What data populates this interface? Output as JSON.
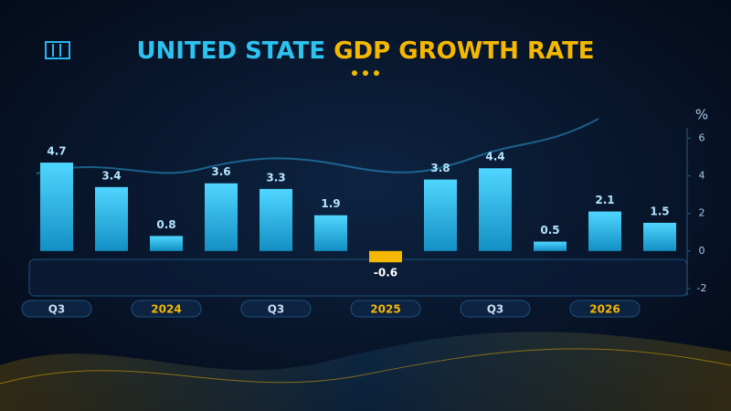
{
  "chart_data": {
    "type": "bar",
    "title": [
      "UNITED STATE",
      "GDP GROWTH RATE"
    ],
    "y_label": "%",
    "categories": [
      "Q3",
      null,
      "2024",
      null,
      "Q3",
      null,
      "2025",
      null,
      "Q3",
      null,
      "2026",
      null
    ],
    "values": [
      4.7,
      3.4,
      0.8,
      3.6,
      3.3,
      1.9,
      -0.6,
      3.8,
      4.4,
      0.5,
      2.1,
      1.5
    ],
    "color": "#2cc3f0",
    "negative_color": "#f5b800",
    "ylim": [
      -2,
      6.5
    ],
    "yticks": [
      -2,
      0,
      2,
      4,
      6
    ],
    "grid": false
  }
}
